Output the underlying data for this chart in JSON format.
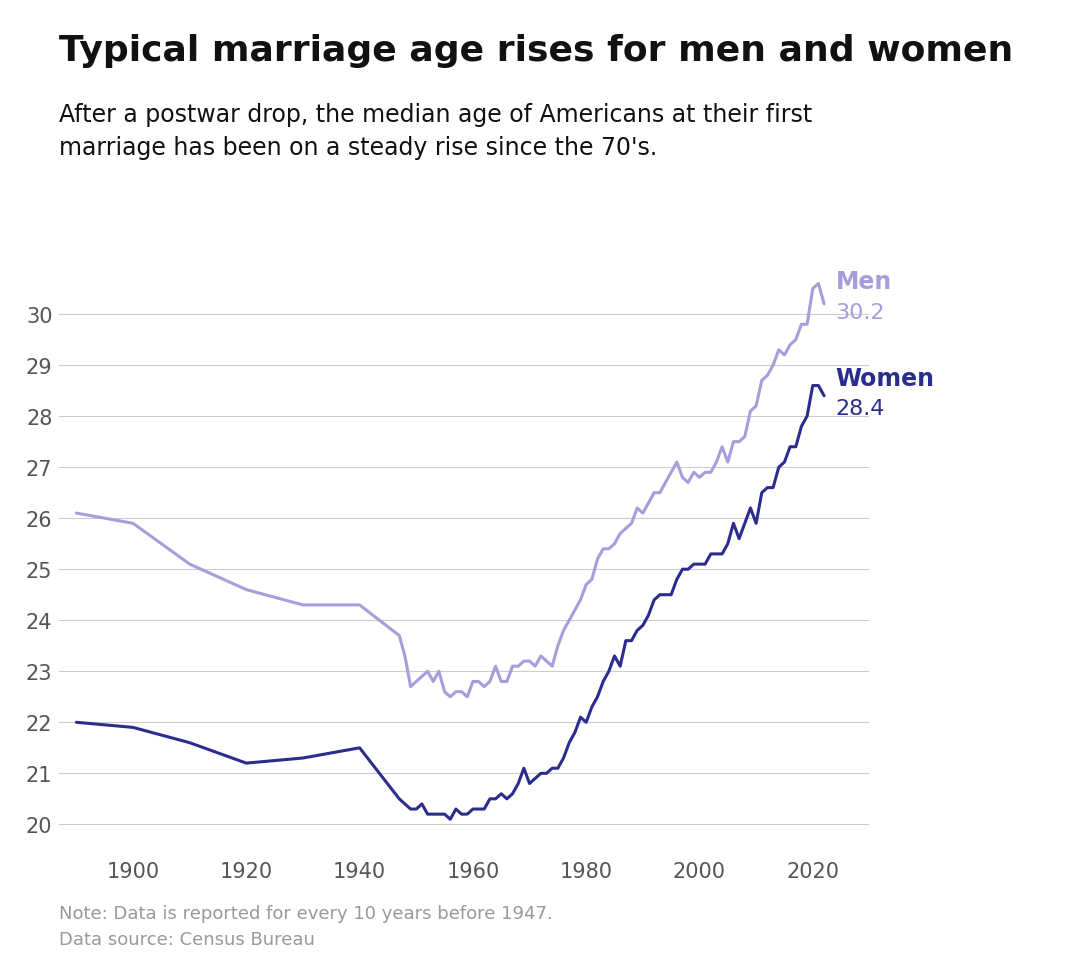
{
  "title": "Typical marriage age rises for men and women",
  "subtitle": "After a postwar drop, the median age of Americans at their first\nmarriage has been on a steady rise since the 70's.",
  "note": "Note: Data is reported for every 10 years before 1947.\nData source: Census Bureau",
  "men_color": "#a89cdb",
  "women_color": "#2b2d8e",
  "men_label": "Men",
  "women_label": "Women",
  "men_final": "30.2",
  "women_final": "28.4",
  "background_color": "#ffffff",
  "men_data": {
    "years": [
      1890,
      1900,
      1910,
      1920,
      1930,
      1940,
      1947,
      1948,
      1949,
      1950,
      1951,
      1952,
      1953,
      1954,
      1955,
      1956,
      1957,
      1958,
      1959,
      1960,
      1961,
      1962,
      1963,
      1964,
      1965,
      1966,
      1967,
      1968,
      1969,
      1970,
      1971,
      1972,
      1973,
      1974,
      1975,
      1976,
      1977,
      1978,
      1979,
      1980,
      1981,
      1982,
      1983,
      1984,
      1985,
      1986,
      1987,
      1988,
      1989,
      1990,
      1991,
      1992,
      1993,
      1994,
      1995,
      1996,
      1997,
      1998,
      1999,
      2000,
      2001,
      2002,
      2003,
      2004,
      2005,
      2006,
      2007,
      2008,
      2009,
      2010,
      2011,
      2012,
      2013,
      2014,
      2015,
      2016,
      2017,
      2018,
      2019,
      2020,
      2021,
      2022
    ],
    "values": [
      26.1,
      25.9,
      25.1,
      24.6,
      24.3,
      24.3,
      23.7,
      23.3,
      22.7,
      22.8,
      22.9,
      23.0,
      22.8,
      23.0,
      22.6,
      22.5,
      22.6,
      22.6,
      22.5,
      22.8,
      22.8,
      22.7,
      22.8,
      23.1,
      22.8,
      22.8,
      23.1,
      23.1,
      23.2,
      23.2,
      23.1,
      23.3,
      23.2,
      23.1,
      23.5,
      23.8,
      24.0,
      24.2,
      24.4,
      24.7,
      24.8,
      25.2,
      25.4,
      25.4,
      25.5,
      25.7,
      25.8,
      25.9,
      26.2,
      26.1,
      26.3,
      26.5,
      26.5,
      26.7,
      26.9,
      27.1,
      26.8,
      26.7,
      26.9,
      26.8,
      26.9,
      26.9,
      27.1,
      27.4,
      27.1,
      27.5,
      27.5,
      27.6,
      28.1,
      28.2,
      28.7,
      28.8,
      29.0,
      29.3,
      29.2,
      29.4,
      29.5,
      29.8,
      29.8,
      30.5,
      30.6,
      30.2
    ]
  },
  "women_data": {
    "years": [
      1890,
      1900,
      1910,
      1920,
      1930,
      1940,
      1947,
      1948,
      1949,
      1950,
      1951,
      1952,
      1953,
      1954,
      1955,
      1956,
      1957,
      1958,
      1959,
      1960,
      1961,
      1962,
      1963,
      1964,
      1965,
      1966,
      1967,
      1968,
      1969,
      1970,
      1971,
      1972,
      1973,
      1974,
      1975,
      1976,
      1977,
      1978,
      1979,
      1980,
      1981,
      1982,
      1983,
      1984,
      1985,
      1986,
      1987,
      1988,
      1989,
      1990,
      1991,
      1992,
      1993,
      1994,
      1995,
      1996,
      1997,
      1998,
      1999,
      2000,
      2001,
      2002,
      2003,
      2004,
      2005,
      2006,
      2007,
      2008,
      2009,
      2010,
      2011,
      2012,
      2013,
      2014,
      2015,
      2016,
      2017,
      2018,
      2019,
      2020,
      2021,
      2022
    ],
    "values": [
      22.0,
      21.9,
      21.6,
      21.2,
      21.3,
      21.5,
      20.5,
      20.4,
      20.3,
      20.3,
      20.4,
      20.2,
      20.2,
      20.2,
      20.2,
      20.1,
      20.3,
      20.2,
      20.2,
      20.3,
      20.3,
      20.3,
      20.5,
      20.5,
      20.6,
      20.5,
      20.6,
      20.8,
      21.1,
      20.8,
      20.9,
      21.0,
      21.0,
      21.1,
      21.1,
      21.3,
      21.6,
      21.8,
      22.1,
      22.0,
      22.3,
      22.5,
      22.8,
      23.0,
      23.3,
      23.1,
      23.6,
      23.6,
      23.8,
      23.9,
      24.1,
      24.4,
      24.5,
      24.5,
      24.5,
      24.8,
      25.0,
      25.0,
      25.1,
      25.1,
      25.1,
      25.3,
      25.3,
      25.3,
      25.5,
      25.9,
      25.6,
      25.9,
      26.2,
      25.9,
      26.5,
      26.6,
      26.6,
      27.0,
      27.1,
      27.4,
      27.4,
      27.8,
      28.0,
      28.6,
      28.6,
      28.4
    ]
  },
  "xlim": [
    1887,
    2030
  ],
  "ylim": [
    19.5,
    31.0
  ],
  "yticks": [
    20,
    21,
    22,
    23,
    24,
    25,
    26,
    27,
    28,
    29,
    30
  ],
  "xticks": [
    1900,
    1920,
    1940,
    1960,
    1980,
    2000,
    2020
  ],
  "title_fontsize": 26,
  "subtitle_fontsize": 17,
  "note_fontsize": 13,
  "tick_fontsize": 15,
  "label_fontsize": 17,
  "value_fontsize": 16,
  "grid_color": "#cccccc",
  "tick_color": "#555555",
  "title_color": "#111111",
  "subtitle_color": "#111111",
  "note_color": "#999999"
}
